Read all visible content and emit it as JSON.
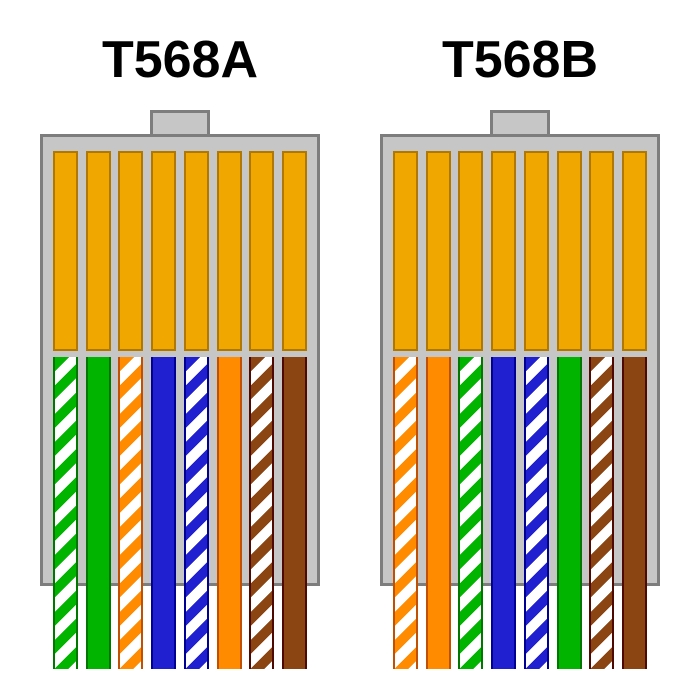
{
  "background": "#ffffff",
  "title_fontsize": 52,
  "pin_color": "#f0a800",
  "pin_border": "#b07800",
  "body_color": "#c6c6c6",
  "body_border": "#7d7d7d",
  "colors": {
    "green": "#00b400",
    "orange": "#ff8c00",
    "blue": "#2020d0",
    "brown": "#8b4513",
    "white": "#ffffff"
  },
  "connectors": [
    {
      "label": "T568A",
      "wires": [
        {
          "type": "striped",
          "color": "green"
        },
        {
          "type": "solid",
          "color": "green"
        },
        {
          "type": "striped",
          "color": "orange"
        },
        {
          "type": "solid",
          "color": "blue"
        },
        {
          "type": "striped",
          "color": "blue"
        },
        {
          "type": "solid",
          "color": "orange"
        },
        {
          "type": "striped",
          "color": "brown"
        },
        {
          "type": "solid",
          "color": "brown"
        }
      ]
    },
    {
      "label": "T568B",
      "wires": [
        {
          "type": "striped",
          "color": "orange"
        },
        {
          "type": "solid",
          "color": "orange"
        },
        {
          "type": "striped",
          "color": "green"
        },
        {
          "type": "solid",
          "color": "blue"
        },
        {
          "type": "striped",
          "color": "blue"
        },
        {
          "type": "solid",
          "color": "green"
        },
        {
          "type": "striped",
          "color": "brown"
        },
        {
          "type": "solid",
          "color": "brown"
        }
      ]
    }
  ]
}
